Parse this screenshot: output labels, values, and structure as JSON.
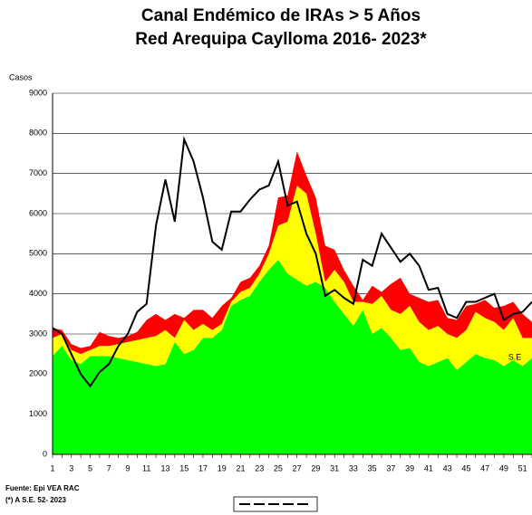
{
  "chart_data": {
    "type": "stacked_area_line",
    "title": "Canal Endémico de IRAs > 5 Años",
    "subtitle": "Red Arequipa Caylloma 2016- 2023*",
    "y_label": "Casos",
    "annotation": "S.E",
    "notes": [
      "Fuente: Epi VEA RAC",
      "(*) A S.E. 52- 2023"
    ],
    "categories": [
      "1",
      null,
      "3",
      null,
      "5",
      null,
      "7",
      null,
      "9",
      null,
      "11",
      null,
      "13",
      null,
      "15",
      null,
      "17",
      null,
      "19",
      null,
      "21",
      null,
      "23",
      null,
      "25",
      null,
      "27",
      null,
      "29",
      null,
      "31",
      null,
      "33",
      null,
      "35",
      null,
      "37",
      null,
      "39",
      null,
      "41",
      null,
      "43",
      null,
      "45",
      null,
      "47",
      null,
      "49",
      null,
      "51",
      null
    ],
    "ylim": [
      0,
      9000
    ],
    "yticks": [
      0,
      1000,
      2000,
      3000,
      4000,
      5000,
      6000,
      7000,
      8000,
      9000
    ],
    "grid": true,
    "series": [
      {
        "color": "#00ff00",
        "stack": true,
        "values": [
          2450,
          2700,
          2350,
          2250,
          2450,
          2450,
          2450,
          2400,
          2350,
          2300,
          2250,
          2200,
          2250,
          2800,
          2500,
          2600,
          2900,
          2900,
          3100,
          3700,
          3850,
          3950,
          4300,
          4600,
          4850,
          4500,
          4350,
          4200,
          4300,
          4150,
          3800,
          3500,
          3200,
          3600,
          3000,
          3150,
          2900,
          2600,
          2650,
          2300,
          2200,
          2300,
          2400,
          2100,
          2300,
          2500,
          2400,
          2350,
          2200,
          2350,
          2200,
          2400
        ]
      },
      {
        "color": "#ffff00",
        "stack": true,
        "values": [
          450,
          300,
          250,
          250,
          150,
          250,
          250,
          350,
          450,
          550,
          650,
          750,
          850,
          100,
          850,
          500,
          350,
          200,
          150,
          100,
          200,
          200,
          200,
          400,
          850,
          1300,
          2350,
          2300,
          1200,
          150,
          800,
          800,
          600,
          200,
          750,
          800,
          700,
          900,
          1050,
          1000,
          900,
          900,
          600,
          800,
          800,
          1050,
          1000,
          950,
          900,
          1050,
          700,
          500
        ]
      },
      {
        "color": "#ff0000",
        "stack": true,
        "values": [
          250,
          100,
          150,
          150,
          100,
          350,
          250,
          150,
          150,
          200,
          450,
          550,
          250,
          600,
          50,
          500,
          350,
          300,
          450,
          100,
          250,
          250,
          200,
          200,
          700,
          650,
          850,
          450,
          900,
          900,
          500,
          300,
          400,
          50,
          450,
          100,
          650,
          900,
          300,
          600,
          700,
          650,
          400,
          450,
          600,
          200,
          450,
          350,
          600,
          400,
          600,
          400
        ]
      },
      {
        "color": "#000000",
        "stack": false,
        "values": [
          3150,
          3000,
          2500,
          2000,
          1700,
          2050,
          2250,
          2700,
          3000,
          3550,
          3750,
          5700,
          6850,
          5800,
          7850,
          7300,
          6400,
          5300,
          5100,
          6050,
          6050,
          6350,
          6600,
          6700,
          7300,
          6200,
          6300,
          5500,
          5000,
          3950,
          4100,
          3900,
          3750,
          4850,
          4700,
          5500,
          5150,
          4800,
          5000,
          4700,
          4100,
          4150,
          3500,
          3400,
          3800,
          3800,
          3900,
          4000,
          3350,
          3500,
          3550,
          3800
        ]
      }
    ]
  }
}
